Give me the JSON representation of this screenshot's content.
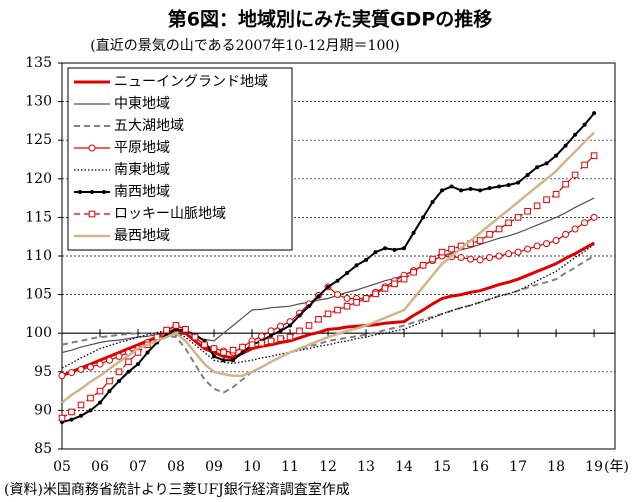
{
  "chart_data": {
    "type": "line",
    "title": "第6図：地域別にみた実質GDPの推移",
    "subtitle": "(直近の景気の山である2007年10-12月期＝100)",
    "source": "(資料)米国商務省統計より三菱UFJ銀行経済調査室作成",
    "x_unit": "(年)",
    "x": [
      2005,
      2005.25,
      2005.5,
      2005.75,
      2006,
      2006.25,
      2006.5,
      2006.75,
      2007,
      2007.25,
      2007.5,
      2007.75,
      2008,
      2008.25,
      2008.5,
      2008.75,
      2009,
      2009.25,
      2009.5,
      2009.75,
      2010,
      2010.25,
      2010.5,
      2010.75,
      2011,
      2011.25,
      2011.5,
      2011.75,
      2012,
      2012.25,
      2012.5,
      2012.75,
      2013,
      2013.25,
      2013.5,
      2013.75,
      2014,
      2014.25,
      2014.5,
      2014.75,
      2015,
      2015.25,
      2015.5,
      2015.75,
      2016,
      2016.25,
      2016.5,
      2016.75,
      2017,
      2017.25,
      2017.5,
      2017.75,
      2018,
      2018.25,
      2018.5,
      2018.75,
      2019
    ],
    "xlim": [
      2005,
      2019.55
    ],
    "xticks": [
      {
        "value": 2005,
        "label": "05"
      },
      {
        "value": 2006,
        "label": "06"
      },
      {
        "value": 2007,
        "label": "07"
      },
      {
        "value": 2008,
        "label": "08"
      },
      {
        "value": 2009,
        "label": "09"
      },
      {
        "value": 2010,
        "label": "10"
      },
      {
        "value": 2011,
        "label": "11"
      },
      {
        "value": 2012,
        "label": "12"
      },
      {
        "value": 2013,
        "label": "13"
      },
      {
        "value": 2014,
        "label": "14"
      },
      {
        "value": 2015,
        "label": "15"
      },
      {
        "value": 2016,
        "label": "16"
      },
      {
        "value": 2017,
        "label": "17"
      },
      {
        "value": 2018,
        "label": "18"
      },
      {
        "value": 2019,
        "label": "19"
      }
    ],
    "ylim": [
      85,
      135
    ],
    "yticks": [
      85,
      90,
      95,
      100,
      105,
      110,
      115,
      120,
      125,
      130,
      135
    ],
    "reference_line": 100,
    "grid": true,
    "legend": "upper left",
    "series": [
      {
        "name": "ニューイングランド地域",
        "color": "#e00000",
        "width": 3,
        "dash": "solid",
        "marker": "none",
        "values": [
          94.5,
          95,
          95.5,
          96,
          96.5,
          97,
          97.5,
          98,
          98.5,
          99,
          99.5,
          100,
          100.5,
          100,
          99,
          98,
          97.5,
          97,
          96.8,
          97.4,
          98,
          98.3,
          98.5,
          98.8,
          99,
          99.4,
          99.8,
          100.1,
          100.5,
          100.6,
          100.8,
          100.9,
          101,
          101.1,
          101.3,
          101.4,
          101.5,
          102.3,
          103,
          103.8,
          104.5,
          104.8,
          105,
          105.3,
          105.5,
          105.9,
          106.3,
          106.6,
          107,
          107.5,
          108,
          108.5,
          109,
          109.7,
          110.3,
          111,
          111.7
        ]
      },
      {
        "name": "中東地域",
        "color": "#505050",
        "width": 1.2,
        "dash": "solid",
        "marker": "none",
        "values": [
          97.5,
          97.8,
          98.2,
          98.5,
          98.8,
          99,
          99.1,
          99.3,
          99.5,
          99.6,
          99.8,
          99.9,
          100,
          99.8,
          99.5,
          99.2,
          99,
          100,
          101,
          102,
          103,
          103.1,
          103.3,
          103.4,
          103.5,
          103.8,
          104,
          104.3,
          104.5,
          104.9,
          105.3,
          105.6,
          106,
          106.4,
          106.8,
          107.1,
          107.5,
          108.1,
          108.8,
          109.4,
          110,
          110.4,
          110.8,
          111.1,
          111.5,
          111.9,
          112.3,
          112.6,
          113,
          113.5,
          114,
          114.5,
          115,
          115.6,
          116.3,
          116.9,
          117.5
        ]
      },
      {
        "name": "五大湖地域",
        "color": "#808080",
        "width": 2,
        "dash": "dashed",
        "marker": "none",
        "values": [
          98.5,
          98.8,
          99,
          99.3,
          99.5,
          99.6,
          99.8,
          99.9,
          100,
          100,
          99.9,
          99.7,
          99.5,
          98,
          96,
          94,
          92.8,
          92.3,
          93,
          94,
          95,
          95.6,
          96.3,
          96.9,
          97.5,
          97.9,
          98.3,
          98.6,
          99,
          99.2,
          99.4,
          99.6,
          99.8,
          100.1,
          100.4,
          100.7,
          101,
          101.4,
          101.8,
          102.1,
          102.5,
          102.9,
          103.3,
          103.6,
          104,
          104.4,
          104.8,
          105.1,
          105.5,
          105.9,
          106.3,
          106.6,
          107,
          107.8,
          108.5,
          109.3,
          110
        ]
      },
      {
        "name": "平原地域",
        "color": "#e00000",
        "width": 1.2,
        "dash": "solid",
        "marker": "circle",
        "values": [
          94.5,
          94.9,
          95.3,
          95.6,
          96,
          96.5,
          97,
          97.5,
          98,
          98.8,
          99.5,
          100.3,
          101,
          100.5,
          99.5,
          98.5,
          98,
          97.7,
          97.5,
          98.2,
          99,
          99.6,
          100.3,
          100.9,
          101.5,
          102.6,
          103.8,
          104.9,
          106,
          105,
          104.5,
          104.5,
          104.5,
          105.3,
          106,
          106.8,
          107.5,
          108.1,
          108.8,
          109.4,
          110,
          109.9,
          109.8,
          109.6,
          109.5,
          109.8,
          110,
          110.3,
          110.5,
          110.9,
          111.3,
          111.6,
          112,
          112.8,
          113.5,
          114.3,
          115
        ]
      },
      {
        "name": "南東地域",
        "color": "#000000",
        "width": 1.3,
        "dash": "dotted",
        "marker": "none",
        "values": [
          95.5,
          96.1,
          96.8,
          97.4,
          98,
          98.4,
          98.8,
          99.1,
          99.5,
          99.8,
          100.1,
          100.3,
          100,
          99.5,
          98.5,
          97.5,
          96.5,
          96.2,
          96.1,
          96.3,
          96.5,
          96.8,
          97,
          97.3,
          97.5,
          97.8,
          98,
          98.3,
          98.5,
          98.8,
          99,
          99.3,
          99.5,
          99.8,
          100,
          100.3,
          100.5,
          101,
          101.5,
          102,
          102.5,
          102.9,
          103.3,
          103.6,
          104,
          104.4,
          104.8,
          105.1,
          105.5,
          106.1,
          106.8,
          107.4,
          108,
          108.9,
          109.8,
          110.6,
          111.5
        ]
      },
      {
        "name": "南西地域",
        "color": "#000000",
        "width": 2,
        "dash": "solid",
        "marker": "dot",
        "values": [
          88.5,
          88.8,
          89.3,
          90,
          91,
          92.5,
          93.8,
          95,
          96,
          97.5,
          98.8,
          99.8,
          100.5,
          100.3,
          99.8,
          99,
          97,
          96.5,
          96.5,
          97.5,
          98.5,
          99,
          99.7,
          100.3,
          101,
          102.3,
          103.5,
          104.8,
          106,
          106.8,
          107.8,
          108.8,
          109.5,
          110.5,
          111,
          110.8,
          111,
          113,
          115,
          117,
          118.5,
          119,
          118.5,
          118.7,
          118.5,
          118.8,
          119,
          119.2,
          119.5,
          120.5,
          121.5,
          122,
          123,
          124.3,
          125.7,
          127,
          128.5
        ]
      },
      {
        "name": "ロッキー山脈地域",
        "color": "#e00000",
        "width": 1.2,
        "dash": "dashed",
        "marker": "square",
        "values": [
          89,
          89.8,
          90.7,
          91.6,
          92.5,
          93.8,
          95,
          96.3,
          97.5,
          98.5,
          99.5,
          100.4,
          101,
          100.5,
          99.5,
          98.5,
          98,
          97.5,
          97.8,
          98.2,
          98.5,
          98.7,
          99,
          99.3,
          99.5,
          100.3,
          101,
          101.8,
          102.5,
          103,
          103.5,
          104,
          104.5,
          105.1,
          105.8,
          106.4,
          107,
          107.9,
          108.8,
          109.6,
          110.5,
          110.9,
          111.3,
          111.6,
          112,
          112.8,
          113.5,
          114.3,
          115,
          115.8,
          116.5,
          117.3,
          118,
          119.3,
          120.5,
          121.8,
          123
        ]
      },
      {
        "name": "最西地域",
        "color": "#d2b48c",
        "width": 2.5,
        "dash": "solid",
        "marker": "none",
        "values": [
          91,
          92,
          92.8,
          93.7,
          94.5,
          95.4,
          96.3,
          97.1,
          98,
          98.5,
          99,
          99.5,
          100,
          99,
          97.5,
          96,
          95,
          94.7,
          94.5,
          94.5,
          95,
          95.6,
          96.3,
          96.9,
          97.5,
          98,
          98.5,
          99,
          99.5,
          99.9,
          100.3,
          100.6,
          101,
          101.5,
          102,
          102.5,
          103,
          104.5,
          106,
          107.5,
          109,
          110,
          111,
          112,
          113,
          114,
          115,
          116,
          117,
          118,
          119,
          120,
          121,
          122.3,
          123.5,
          124.8,
          126
        ]
      }
    ]
  }
}
